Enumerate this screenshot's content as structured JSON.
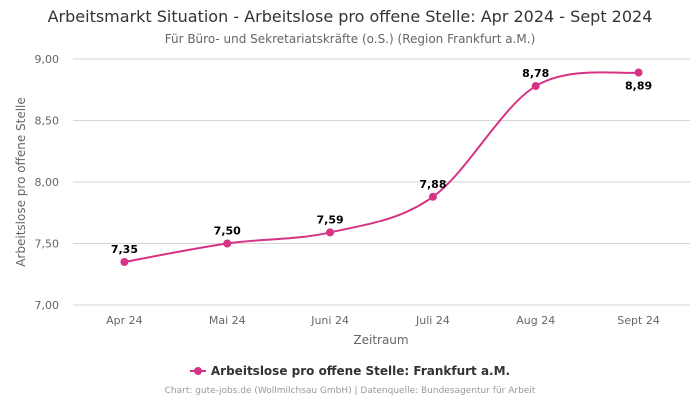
{
  "chart_data": {
    "type": "line",
    "title": "Arbeitsmarkt Situation - Arbeitslose pro offene Stelle: Apr 2024 - Sept 2024",
    "subtitle": "Für Büro- und Sekretariatskräfte (o.S.) (Region Frankfurt a.M.)",
    "xlabel": "Zeitraum",
    "ylabel": "Arbeitslose pro offene Stelle",
    "categories": [
      "Apr 24",
      "Mai 24",
      "Juni 24",
      "Juli 24",
      "Aug 24",
      "Sept 24"
    ],
    "series": [
      {
        "name": "Arbeitslose pro offene Stelle: Frankfurt a.M.",
        "values": [
          7.35,
          7.5,
          7.59,
          7.88,
          8.78,
          8.89
        ],
        "labels": [
          "7,35",
          "7,50",
          "7,59",
          "7,88",
          "8,78",
          "8,89"
        ]
      }
    ],
    "ylim": [
      7.0,
      9.0
    ],
    "yticks": [
      7.0,
      7.5,
      8.0,
      8.5,
      9.0
    ],
    "ytick_labels": [
      "7,00",
      "7,50",
      "8,00",
      "8,50",
      "9,00"
    ],
    "grid": true,
    "legend_position": "bottom-center",
    "line_color": "#d63384",
    "credits": "Chart: gute-jobs.de (Wollmilchsau GmbH) | Datenquelle: Bundesagentur für Arbeit"
  }
}
